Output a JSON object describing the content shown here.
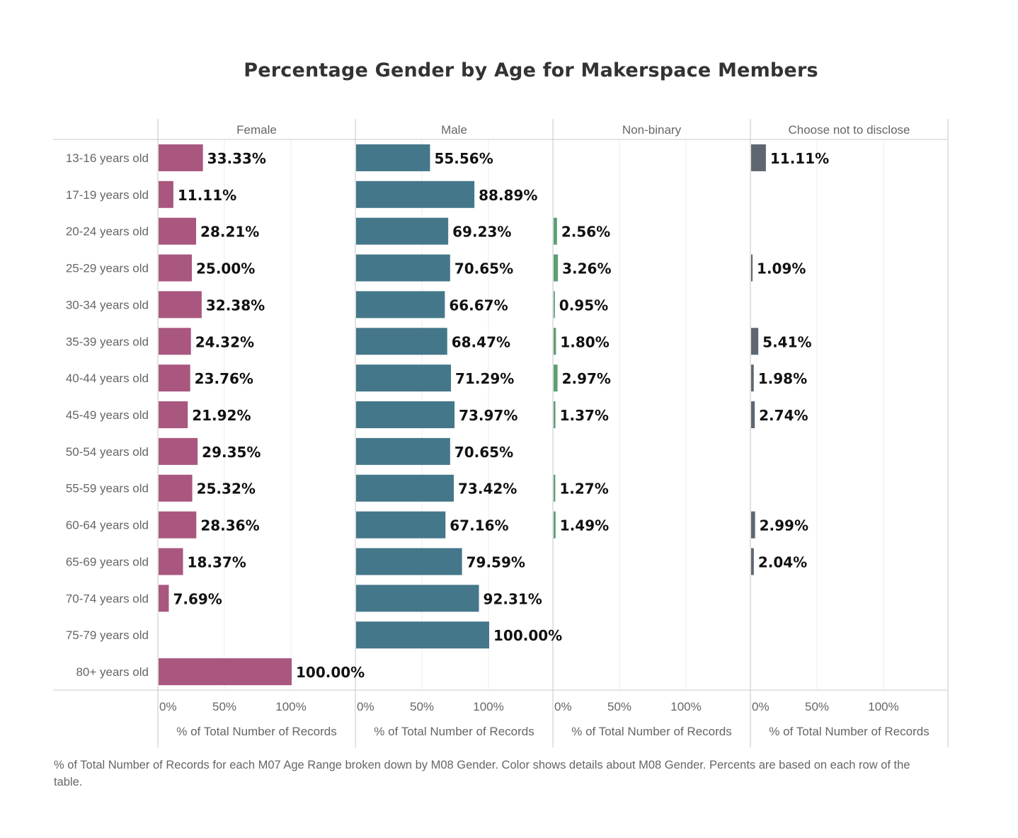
{
  "chart_data": {
    "type": "bar",
    "orientation": "horizontal",
    "title": "Percentage Gender by Age for Makerspace Members",
    "categories": [
      "13-16 years old",
      "17-19 years old",
      "20-24 years old",
      "25-29 years old",
      "30-34 years old",
      "35-39 years old",
      "40-44 years old",
      "45-49 years old",
      "50-54 years old",
      "55-59 years old",
      "60-64 years old",
      "65-69 years old",
      "70-74 years old",
      "75-79 years old",
      "80+ years old"
    ],
    "series": [
      {
        "name": "Female",
        "color": "#a9577f",
        "values": [
          33.33,
          11.11,
          28.21,
          25.0,
          32.38,
          24.32,
          23.76,
          21.92,
          29.35,
          25.32,
          28.36,
          18.37,
          7.69,
          null,
          100.0
        ],
        "labels": [
          "33.33%",
          "11.11%",
          "28.21%",
          "25.00%",
          "32.38%",
          "24.32%",
          "23.76%",
          "21.92%",
          "29.35%",
          "25.32%",
          "28.36%",
          "18.37%",
          "7.69%",
          "",
          "100.00%"
        ]
      },
      {
        "name": "Male",
        "color": "#44778a",
        "values": [
          55.56,
          88.89,
          69.23,
          70.65,
          66.67,
          68.47,
          71.29,
          73.97,
          70.65,
          73.42,
          67.16,
          79.59,
          92.31,
          100.0,
          null
        ],
        "labels": [
          "55.56%",
          "88.89%",
          "69.23%",
          "70.65%",
          "66.67%",
          "68.47%",
          "71.29%",
          "73.97%",
          "70.65%",
          "73.42%",
          "67.16%",
          "79.59%",
          "92.31%",
          "100.00%",
          ""
        ]
      },
      {
        "name": "Non-binary",
        "color": "#5d9f74",
        "values": [
          null,
          null,
          2.56,
          3.26,
          0.95,
          1.8,
          2.97,
          1.37,
          null,
          1.27,
          1.49,
          null,
          null,
          null,
          null
        ],
        "labels": [
          "",
          "",
          "2.56%",
          "3.26%",
          "0.95%",
          "1.80%",
          "2.97%",
          "1.37%",
          "",
          "1.27%",
          "1.49%",
          "",
          "",
          "",
          ""
        ]
      },
      {
        "name": "Choose not to disclose",
        "color": "#5e6770",
        "values": [
          11.11,
          null,
          null,
          1.09,
          null,
          5.41,
          1.98,
          2.74,
          null,
          null,
          2.99,
          2.04,
          null,
          null,
          null
        ],
        "labels": [
          "11.11%",
          "",
          "",
          "1.09%",
          "",
          "5.41%",
          "1.98%",
          "2.74%",
          "",
          "",
          "2.99%",
          "2.04%",
          "",
          "",
          ""
        ]
      }
    ],
    "xlim": [
      0,
      145
    ],
    "xticks": [
      0,
      50,
      100
    ],
    "xtick_labels": [
      "0%",
      "50%",
      "100%"
    ],
    "xlabel": "% of Total Number of Records",
    "grid": true,
    "legend": "none"
  },
  "footnote": "% of Total Number of Records for each M07 Age Range broken down by M08 Gender.  Color shows details about M08 Gender. Percents are based on each row of the table."
}
